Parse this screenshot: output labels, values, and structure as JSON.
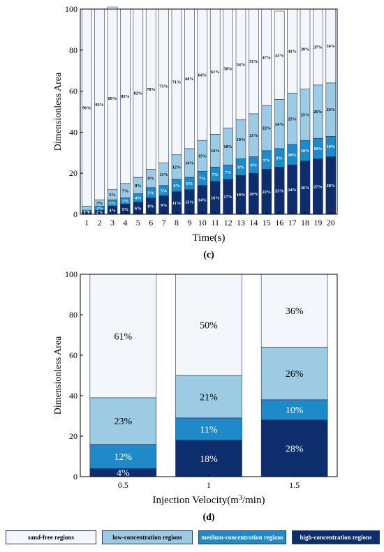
{
  "colors": {
    "sand_free": "#f3f7fb",
    "low": "#9ccbe3",
    "medium": "#1f8ac8",
    "high": "#0e2d6c",
    "axis": "#000000"
  },
  "chart_data": [
    {
      "type": "bar",
      "stacked": true,
      "panel_label": "(c)",
      "xlabel": "Time(s)",
      "ylabel": "Dimensionless Area",
      "ylim": [
        0,
        100
      ],
      "yticks": [
        0,
        20,
        40,
        60,
        80,
        100
      ],
      "categories": [
        "1",
        "2",
        "3",
        "4",
        "5",
        "6",
        "7",
        "8",
        "9",
        "10",
        "11",
        "12",
        "13",
        "14",
        "15",
        "16",
        "17",
        "18",
        "19",
        "20"
      ],
      "series": [
        {
          "name": "high-concentration regions",
          "values": [
            1,
            2,
            4,
            5,
            6,
            8,
            9,
            11,
            12,
            14,
            16,
            17,
            19,
            20,
            22,
            23,
            24,
            26,
            27,
            28
          ],
          "labels": [
            "1%",
            "2%",
            "4%",
            "5%",
            "6%",
            "8%",
            "9%",
            "11%",
            "12%",
            "14%",
            "16%",
            "17%",
            "19%",
            "20%",
            "22%",
            "23%",
            "24%",
            "26%",
            "27%",
            "28%"
          ]
        },
        {
          "name": "medium-concentration regions",
          "values": [
            1,
            2,
            3,
            3,
            4,
            5,
            5,
            6,
            6,
            7,
            7,
            7,
            8,
            8,
            9,
            9,
            10,
            10,
            10,
            10
          ],
          "labels": [
            "1%",
            "2%",
            "3%",
            "3%",
            "4%",
            "5%",
            "5%",
            "6%",
            "6%",
            "7%",
            "7%",
            "7%",
            "8%",
            "8%",
            "9%",
            "9%",
            "10%",
            "10%",
            "10%",
            "10%"
          ]
        },
        {
          "name": "low-concentration regions",
          "values": [
            2,
            3,
            5,
            7,
            8,
            9,
            11,
            12,
            14,
            15,
            16,
            18,
            19,
            21,
            22,
            24,
            25,
            25,
            26,
            26
          ],
          "labels": [
            "",
            "3%",
            "5%",
            "7%",
            "8%",
            "9%",
            "11%",
            "12%",
            "14%",
            "15%",
            "16%",
            "18%",
            "19%",
            "21%",
            "22%",
            "24%",
            "25%",
            "25%",
            "26%",
            "26%"
          ]
        },
        {
          "name": "sand-free regions",
          "values": [
            96,
            93,
            89,
            85,
            82,
            78,
            75,
            71,
            68,
            64,
            61,
            58,
            54,
            51,
            47,
            43,
            41,
            39,
            37,
            36
          ],
          "labels": [
            "96%",
            "93%",
            "89%",
            "85%",
            "82%",
            "78%",
            "75%",
            "71%",
            "68%",
            "64%",
            "61%",
            "58%",
            "54%",
            "51%",
            "47%",
            "43%",
            "41%",
            "39%",
            "37%",
            "36%"
          ]
        }
      ]
    },
    {
      "type": "bar",
      "stacked": true,
      "panel_label": "(d)",
      "xlabel_main": "Injection Velocity(m",
      "xlabel_sup": "3",
      "xlabel_end": "/min)",
      "ylabel": "Dimensionless Area",
      "ylim": [
        0,
        100
      ],
      "yticks": [
        0,
        20,
        40,
        60,
        80,
        100
      ],
      "categories": [
        "0.5",
        "1",
        "1.5"
      ],
      "series": [
        {
          "name": "high-concentration regions",
          "values": [
            4,
            18,
            28
          ],
          "labels": [
            "4%",
            "18%",
            "28%"
          ]
        },
        {
          "name": "medium-concentration regions",
          "values": [
            12,
            11,
            10
          ],
          "labels": [
            "12%",
            "11%",
            "10%"
          ]
        },
        {
          "name": "low-concentration regions",
          "values": [
            23,
            21,
            26
          ],
          "labels": [
            "23%",
            "21%",
            "26%"
          ]
        },
        {
          "name": "sand-free regions",
          "values": [
            61,
            50,
            36
          ],
          "labels": [
            "61%",
            "50%",
            "36%"
          ]
        }
      ]
    }
  ],
  "legend": {
    "items": [
      {
        "key": "sand_free",
        "label": "sand-free regions"
      },
      {
        "key": "low",
        "label": "low-concentration regions"
      },
      {
        "key": "medium",
        "label": "medium-concentration regions"
      },
      {
        "key": "high",
        "label": "high-concentration regions"
      }
    ]
  }
}
